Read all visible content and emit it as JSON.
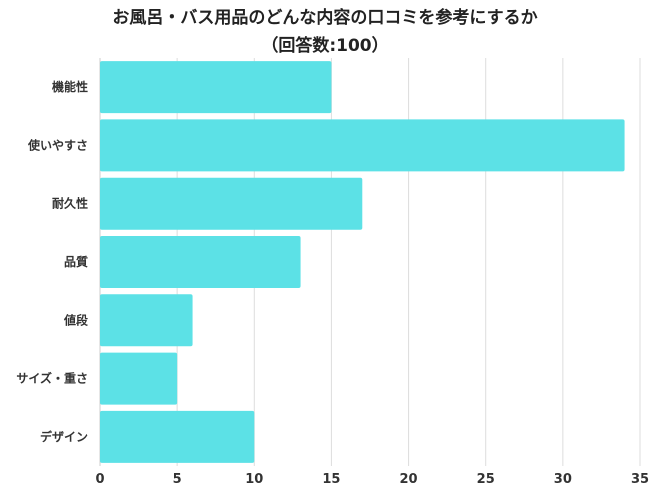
{
  "chart_data": {
    "type": "bar",
    "orientation": "horizontal",
    "title_lines": [
      "お風呂・バス用品のどんな内容の口コミを参考にするか",
      "（回答数:100）"
    ],
    "categories": [
      "機能性",
      "使いやすさ",
      "耐久性",
      "品質",
      "値段",
      "サイズ・重さ",
      "デザイン"
    ],
    "values": [
      15,
      34,
      17,
      13,
      6,
      5,
      10
    ],
    "xlim": [
      0,
      35
    ],
    "xticks": [
      0,
      5,
      10,
      15,
      20,
      25,
      30,
      35
    ],
    "grid": true,
    "bar_color": "#5ce1e6",
    "grid_color": "#dddddd"
  }
}
